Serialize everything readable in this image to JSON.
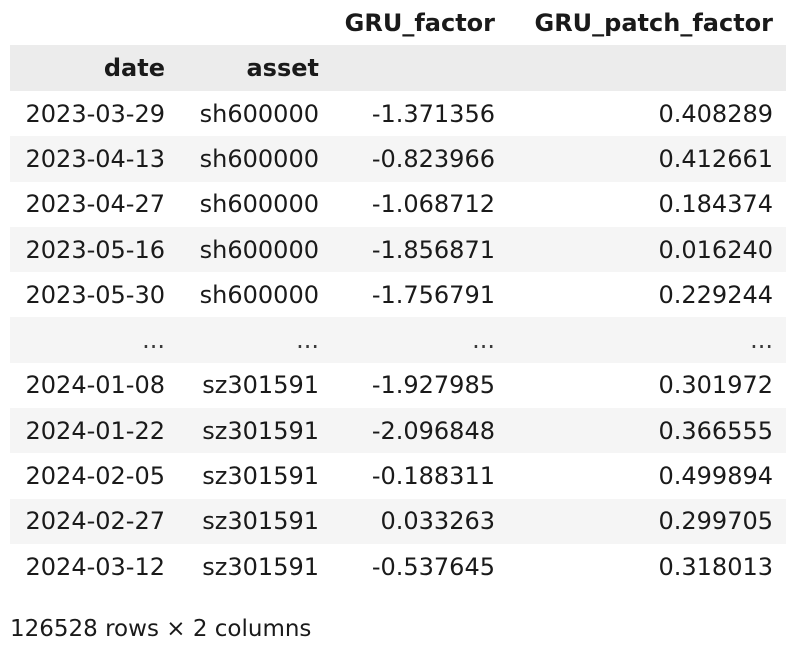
{
  "dataframe": {
    "columns": [
      "GRU_factor",
      "GRU_patch_factor"
    ],
    "index_names": [
      "date",
      "asset"
    ],
    "rows": [
      {
        "date": "2023-03-29",
        "asset": "sh600000",
        "gru": "-1.371356",
        "patch": "0.408289"
      },
      {
        "date": "2023-04-13",
        "asset": "sh600000",
        "gru": "-0.823966",
        "patch": "0.412661"
      },
      {
        "date": "2023-04-27",
        "asset": "sh600000",
        "gru": "-1.068712",
        "patch": "0.184374"
      },
      {
        "date": "2023-05-16",
        "asset": "sh600000",
        "gru": "-1.856871",
        "patch": "0.016240"
      },
      {
        "date": "2023-05-30",
        "asset": "sh600000",
        "gru": "-1.756791",
        "patch": "0.229244"
      },
      {
        "date": "...",
        "asset": "...",
        "gru": "...",
        "patch": "..."
      },
      {
        "date": "2024-01-08",
        "asset": "sz301591",
        "gru": "-1.927985",
        "patch": "0.301972"
      },
      {
        "date": "2024-01-22",
        "asset": "sz301591",
        "gru": "-2.096848",
        "patch": "0.366555"
      },
      {
        "date": "2024-02-05",
        "asset": "sz301591",
        "gru": "-0.188311",
        "patch": "0.499894"
      },
      {
        "date": "2024-02-27",
        "asset": "sz301591",
        "gru": "0.033263",
        "patch": "0.299705"
      },
      {
        "date": "2024-03-12",
        "asset": "sz301591",
        "gru": "-0.537645",
        "patch": "0.318013"
      }
    ],
    "shape_text": "126528 rows × 2 columns"
  }
}
